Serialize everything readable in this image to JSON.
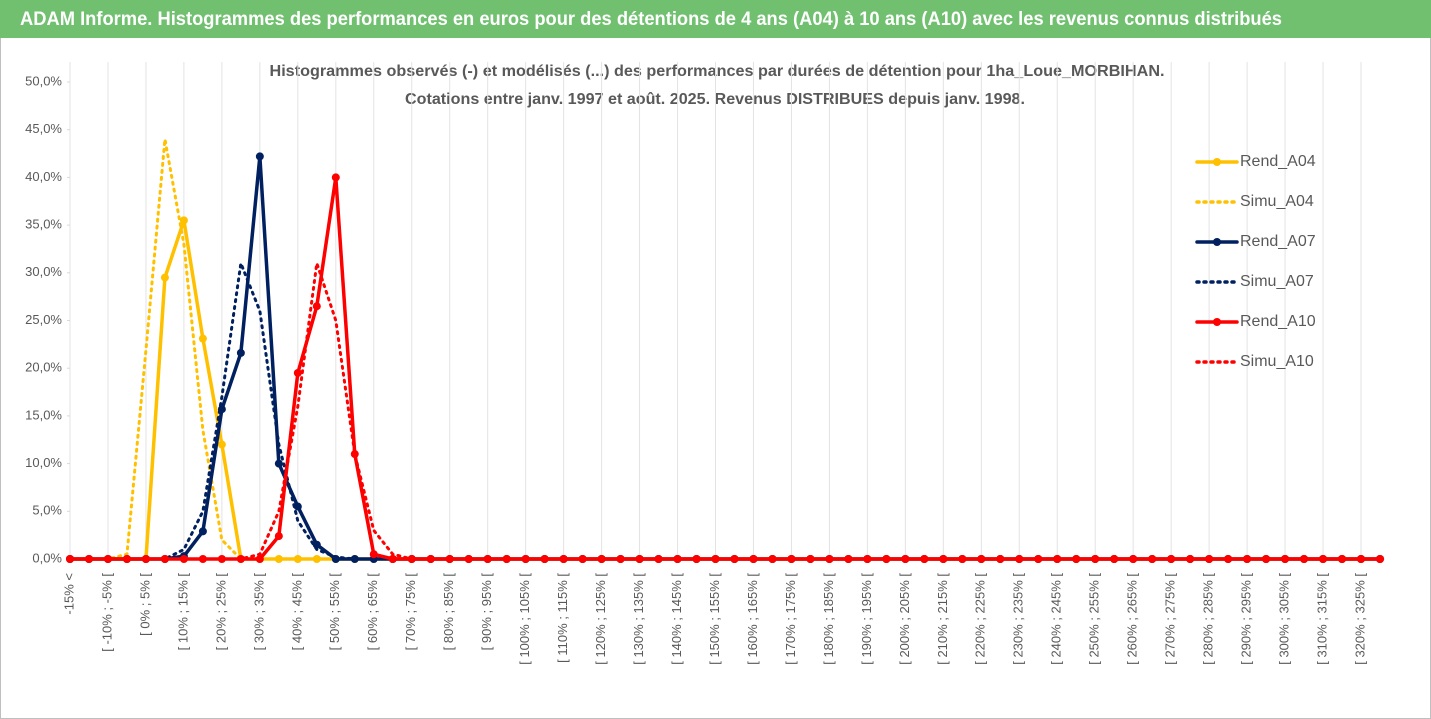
{
  "header": {
    "title": "ADAM Informe. Histogrammes des performances en euros pour des détentions de 4 ans (A04) à 10 ans (A10) avec les revenus connus distribués"
  },
  "chart_data": {
    "type": "line",
    "title": "Histogrammes observés (-) et modélisés (...) des performances par durées de détention pour 1ha_Loue_MORBIHAN.",
    "subtitle": "Cotations entre janv. 1997 et août. 2025. Revenus DISTRIBUES depuis janv. 1998.",
    "categories": [
      "-15% <",
      null,
      "[ -10% ; -5% [",
      null,
      "[ 0% ; 5% [",
      null,
      "[ 10% ; 15% [",
      null,
      "[ 20% ; 25% [",
      null,
      "[ 30% ; 35% [",
      null,
      "[ 40% ; 45% [",
      null,
      "[ 50% ; 55% [",
      null,
      "[ 60% ; 65% [",
      null,
      "[ 70% ; 75% [",
      null,
      "[ 80% ; 85% [",
      null,
      "[ 90% ; 95% [",
      null,
      "[ 100% ; 105% [",
      null,
      "[ 110% ; 115% [",
      null,
      "[ 120% ; 125% [",
      null,
      "[ 130% ; 135% [",
      null,
      "[ 140% ; 145% [",
      null,
      "[ 150% ; 155% [",
      null,
      "[ 160% ; 165% [",
      null,
      "[ 170% ; 175% [",
      null,
      "[ 180% ; 185% [",
      null,
      "[ 190% ; 195% [",
      null,
      "[ 200% ; 205% [",
      null,
      "[ 210% ; 215% [",
      null,
      "[ 220% ; 225% [",
      null,
      "[ 230% ; 235% [",
      null,
      "[ 240% ; 245% [",
      null,
      "[ 250% ; 255% [",
      null,
      "[ 260% ; 265% [",
      null,
      "[ 270% ; 275% [",
      null,
      "[ 280% ; 285% [",
      null,
      "[ 290% ; 295% [",
      null,
      "[ 300% ; 305% [",
      null,
      "[ 310% ; 315% [",
      null,
      "[ 320% ; 325% [",
      null
    ],
    "series": [
      {
        "name": "Rend_A04",
        "color": "#ffc000",
        "style": "solid",
        "marker": true,
        "values": [
          0,
          0,
          0,
          0,
          0,
          29.5,
          35.5,
          23.1,
          12,
          0,
          0,
          0,
          0,
          0,
          0,
          0,
          0,
          0,
          0,
          0,
          0,
          0,
          0,
          0,
          0,
          0,
          0,
          0,
          0,
          0,
          0,
          0,
          0,
          0,
          0,
          0,
          0,
          0,
          0,
          0,
          0,
          0,
          0,
          0,
          0,
          0,
          0,
          0,
          0,
          0,
          0,
          0,
          0,
          0,
          0,
          0,
          0,
          0,
          0,
          0,
          0,
          0,
          0,
          0,
          0,
          0,
          0,
          0,
          0,
          0
        ]
      },
      {
        "name": "Simu_A04",
        "color": "#ffc000",
        "style": "dotted",
        "marker": false,
        "values": [
          0,
          0,
          0,
          0.5,
          21.9,
          44,
          33,
          13.5,
          2,
          0,
          0,
          0,
          0,
          0,
          0,
          0,
          0,
          0,
          0,
          0,
          0,
          0,
          0,
          0,
          0,
          0,
          0,
          0,
          0,
          0,
          0,
          0,
          0,
          0,
          0,
          0,
          0,
          0,
          0,
          0,
          0,
          0,
          0,
          0,
          0,
          0,
          0,
          0,
          0,
          0,
          0,
          0,
          0,
          0,
          0,
          0,
          0,
          0,
          0,
          0,
          0,
          0,
          0,
          0,
          0,
          0,
          0,
          0,
          0,
          0
        ]
      },
      {
        "name": "Rend_A07",
        "color": "#002060",
        "style": "solid",
        "marker": true,
        "values": [
          0,
          0,
          0,
          0,
          0,
          0,
          0.3,
          2.9,
          15.7,
          21.6,
          42.2,
          10,
          5.5,
          1.5,
          0,
          0,
          0,
          0,
          0,
          0,
          0,
          0,
          0,
          0,
          0,
          0,
          0,
          0,
          0,
          0,
          0,
          0,
          0,
          0,
          0,
          0,
          0,
          0,
          0,
          0,
          0,
          0,
          0,
          0,
          0,
          0,
          0,
          0,
          0,
          0,
          0,
          0,
          0,
          0,
          0,
          0,
          0,
          0,
          0,
          0,
          0,
          0,
          0,
          0,
          0,
          0,
          0,
          0,
          0,
          0
        ]
      },
      {
        "name": "Simu_A07",
        "color": "#002060",
        "style": "dotted",
        "marker": false,
        "values": [
          0,
          0,
          0,
          0,
          0,
          0,
          1,
          5,
          17,
          31,
          26,
          12,
          4,
          1,
          0.2,
          0,
          0,
          0,
          0,
          0,
          0,
          0,
          0,
          0,
          0,
          0,
          0,
          0,
          0,
          0,
          0,
          0,
          0,
          0,
          0,
          0,
          0,
          0,
          0,
          0,
          0,
          0,
          0,
          0,
          0,
          0,
          0,
          0,
          0,
          0,
          0,
          0,
          0,
          0,
          0,
          0,
          0,
          0,
          0,
          0,
          0,
          0,
          0,
          0,
          0,
          0,
          0,
          0,
          0,
          0
        ]
      },
      {
        "name": "Rend_A10",
        "color": "#ff0000",
        "style": "solid",
        "marker": true,
        "values": [
          0,
          0,
          0,
          0,
          0,
          0,
          0,
          0,
          0,
          0,
          0,
          2.4,
          19.5,
          26.5,
          40,
          11,
          0.5,
          0,
          0,
          0,
          0,
          0,
          0,
          0,
          0,
          0,
          0,
          0,
          0,
          0,
          0,
          0,
          0,
          0,
          0,
          0,
          0,
          0,
          0,
          0,
          0,
          0,
          0,
          0,
          0,
          0,
          0,
          0,
          0,
          0,
          0,
          0,
          0,
          0,
          0,
          0,
          0,
          0,
          0,
          0,
          0,
          0,
          0,
          0,
          0,
          0,
          0,
          0,
          0,
          0
        ]
      },
      {
        "name": "Simu_A10",
        "color": "#ff0000",
        "style": "dotted",
        "marker": false,
        "values": [
          0,
          0,
          0,
          0,
          0,
          0,
          0,
          0,
          0,
          0,
          0.5,
          5,
          16,
          31,
          25,
          11,
          3,
          0.5,
          0,
          0,
          0,
          0,
          0,
          0,
          0,
          0,
          0,
          0,
          0,
          0,
          0,
          0,
          0,
          0,
          0,
          0,
          0,
          0,
          0,
          0,
          0,
          0,
          0,
          0,
          0,
          0,
          0,
          0,
          0,
          0,
          0,
          0,
          0,
          0,
          0,
          0,
          0,
          0,
          0,
          0,
          0,
          0,
          0,
          0,
          0,
          0,
          0,
          0,
          0,
          0
        ]
      }
    ],
    "ylim": [
      0,
      50
    ],
    "yticks": [
      {
        "value": 0,
        "label": "0,0%"
      },
      {
        "value": 5,
        "label": "5,0%"
      },
      {
        "value": 10,
        "label": "10,0%"
      },
      {
        "value": 15,
        "label": "15,0%"
      },
      {
        "value": 20,
        "label": "20,0%"
      },
      {
        "value": 25,
        "label": "25,0%"
      },
      {
        "value": 30,
        "label": "30,0%"
      },
      {
        "value": 35,
        "label": "35,0%"
      },
      {
        "value": 40,
        "label": "40,0%"
      },
      {
        "value": 45,
        "label": "45,0%"
      },
      {
        "value": 50,
        "label": "50,0%"
      }
    ],
    "xgrid": true,
    "legend": "right"
  }
}
